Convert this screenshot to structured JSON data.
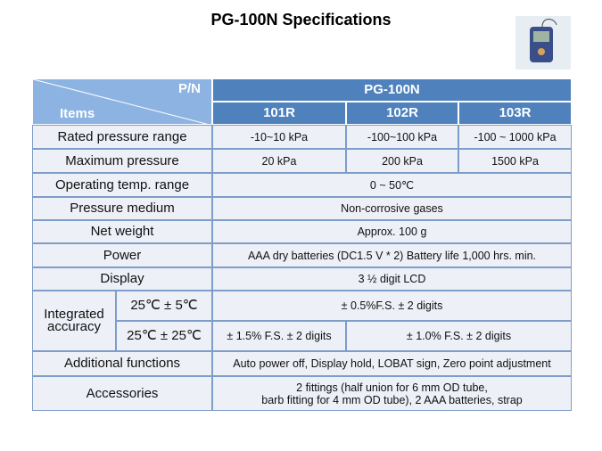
{
  "title": "PG-100N Specifications",
  "header": {
    "pn": "P/N",
    "items": "Items",
    "model": "PG-100N",
    "variants": [
      "101R",
      "102R",
      "103R"
    ]
  },
  "rows": [
    {
      "label": "Rated pressure range",
      "values": [
        "-10~10 kPa",
        "-100~100 kPa",
        "-100 ~ 1000 kPa"
      ]
    },
    {
      "label": "Maximum pressure",
      "values": [
        "20 kPa",
        "200 kPa",
        "1500 kPa"
      ]
    },
    {
      "label": "Operating temp. range",
      "values": [
        "0 ~ 50℃"
      ]
    },
    {
      "label": "Pressure medium",
      "values": [
        "Non-corrosive gases"
      ]
    },
    {
      "label": "Net weight",
      "values": [
        "Approx. 100 g"
      ]
    },
    {
      "label": "Power",
      "values": [
        "AAA dry batteries (DC1.5 V * 2)  Battery life 1,000 hrs. min."
      ]
    },
    {
      "label": "Display",
      "values": [
        "3 ½ digit LCD"
      ]
    }
  ],
  "accuracy": {
    "label": "Integrated accuracy",
    "sub": [
      {
        "label": "25℃ ± 5℃",
        "values": [
          "± 0.5%F.S.  ± 2 digits"
        ]
      },
      {
        "label": "25℃ ± 25℃",
        "values": [
          "± 1.5% F.S. ± 2 digits",
          "± 1.0% F.S.  ± 2 digits"
        ]
      }
    ]
  },
  "rows2": [
    {
      "label": "Additional functions",
      "values": [
        "Auto power off, Display hold, LOBAT  sign, Zero point adjustment"
      ]
    },
    {
      "label": "Accessories",
      "values": [
        "2 fittings (half union for 6 mm OD tube,\nbarb fitting for 4 mm OD tube), 2 AAA  batteries, strap"
      ]
    }
  ]
}
